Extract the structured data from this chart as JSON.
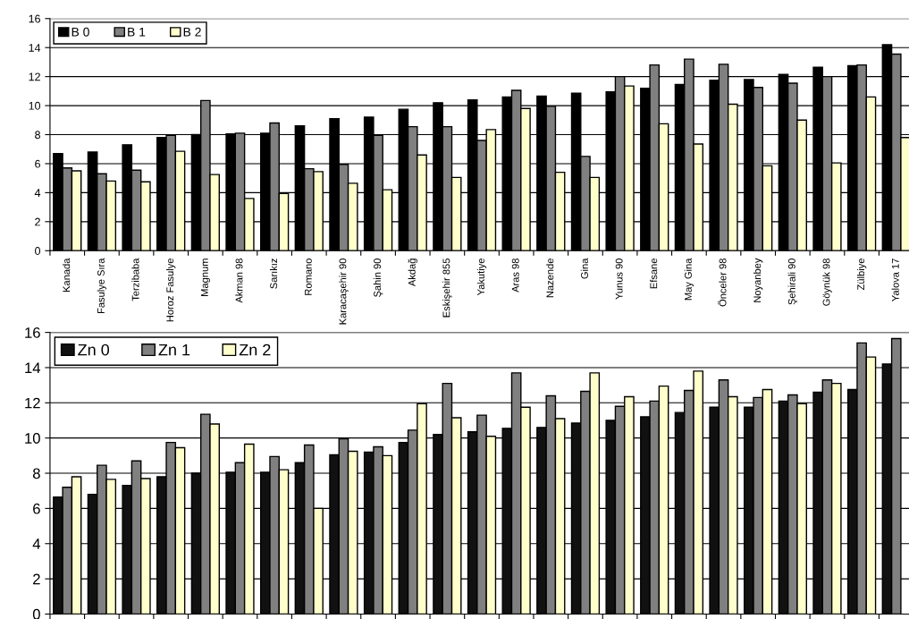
{
  "chart_data": [
    {
      "type": "bar",
      "categories": [
        "Kanada",
        "Fasulye Sıra",
        "Terzibaba",
        "Horoz Fasulye",
        "Magnum",
        "Akman 98",
        "Sarıkız",
        "Romano",
        "Karacaşehir 90",
        "Şahin 90",
        "Akdağ",
        "Eskişehir 855",
        "Yakutiye",
        "Aras 98",
        "Nazende",
        "Gina",
        "Yunus 90",
        "Efsane",
        "May Gina",
        "Önceler 98",
        "Noyanbey",
        "Şehirali 90",
        "Göynük 98",
        "Zülbiye",
        "Yalova 17"
      ],
      "series": [
        {
          "name": "B 0",
          "color": "#000000",
          "values": [
            6.7,
            6.8,
            7.3,
            7.8,
            8.0,
            8.05,
            8.1,
            8.6,
            9.1,
            9.2,
            9.75,
            10.2,
            10.4,
            10.6,
            10.65,
            10.85,
            10.95,
            11.2,
            11.45,
            11.75,
            11.8,
            12.15,
            12.65,
            12.75,
            14.2
          ]
        },
        {
          "name": "B 1",
          "color": "#808080",
          "values": [
            5.7,
            5.3,
            5.55,
            7.95,
            10.35,
            8.1,
            8.8,
            5.65,
            5.95,
            7.95,
            8.55,
            8.55,
            7.6,
            11.05,
            9.95,
            6.5,
            12.0,
            12.8,
            13.2,
            12.85,
            11.25,
            11.55,
            12.0,
            12.8,
            13.55
          ]
        },
        {
          "name": "B 2",
          "color": "#ffffcc",
          "values": [
            5.5,
            4.8,
            4.75,
            6.85,
            5.25,
            3.6,
            3.95,
            5.45,
            4.65,
            4.2,
            6.6,
            5.05,
            8.35,
            9.8,
            5.4,
            5.05,
            11.35,
            8.75,
            7.35,
            10.1,
            5.85,
            9.0,
            6.05,
            10.6,
            7.8
          ]
        }
      ],
      "ylim": [
        0,
        16
      ],
      "yticks": [
        0,
        2,
        4,
        6,
        8,
        10,
        12,
        14,
        16
      ],
      "grid": "y",
      "legend": "top left"
    },
    {
      "type": "bar",
      "categories": [
        null,
        null,
        null,
        null,
        null,
        null,
        null,
        null,
        null,
        null,
        null,
        null,
        null,
        null,
        null,
        null,
        null,
        null,
        null,
        null,
        null,
        null,
        null,
        null,
        null
      ],
      "series": [
        {
          "name": "Zn 0",
          "color": "#111111",
          "values": [
            6.65,
            6.8,
            7.3,
            7.8,
            8.0,
            8.05,
            8.05,
            8.6,
            9.05,
            9.2,
            9.75,
            10.2,
            10.35,
            10.55,
            10.6,
            10.85,
            11.0,
            11.2,
            11.45,
            11.75,
            11.75,
            12.1,
            12.6,
            12.75,
            14.2
          ]
        },
        {
          "name": "Zn 1",
          "color": "#808080",
          "values": [
            7.2,
            8.45,
            8.7,
            9.75,
            11.35,
            8.6,
            8.95,
            9.6,
            9.95,
            9.5,
            10.45,
            13.1,
            11.3,
            13.7,
            12.4,
            12.65,
            11.8,
            12.1,
            12.7,
            13.3,
            12.3,
            12.45,
            13.3,
            15.4,
            15.65
          ]
        },
        {
          "name": "Zn 2",
          "color": "#ffffcc",
          "values": [
            7.8,
            7.65,
            7.7,
            9.45,
            10.8,
            9.65,
            8.2,
            6.0,
            9.25,
            9.0,
            11.95,
            11.15,
            10.1,
            11.75,
            11.1,
            13.7,
            12.35,
            12.95,
            13.8,
            12.35,
            12.75,
            11.95,
            13.1,
            14.6,
            null
          ]
        }
      ],
      "ylim": [
        0,
        16
      ],
      "yticks": [
        0,
        2,
        4,
        6,
        8,
        10,
        12,
        14,
        16
      ],
      "grid": "y",
      "legend": "top left"
    }
  ]
}
